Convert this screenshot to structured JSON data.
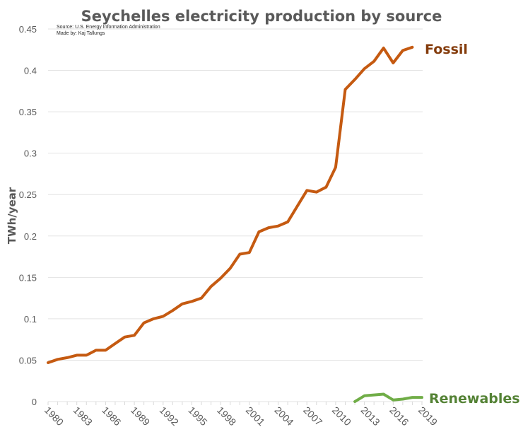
{
  "chart_data": {
    "type": "line",
    "title": "Seychelles electricity production by source",
    "source_note": "Source: U.S. Energy Information Administration",
    "author_note": "Made by: Kaj Tallungs",
    "xlabel": "",
    "ylabel": "TWh/year",
    "ylim": [
      0,
      0.45
    ],
    "yticks": [
      "0",
      "0.05",
      "0.1",
      "0.15",
      "0.2",
      "0.25",
      "0.3",
      "0.35",
      "0.4",
      "0.45"
    ],
    "ytick_values": [
      0,
      0.05,
      0.1,
      0.15,
      0.2,
      0.25,
      0.3,
      0.35,
      0.4,
      0.45
    ],
    "xlim": [
      1980,
      2019
    ],
    "xticks": [
      "1980",
      "1983",
      "1986",
      "1989",
      "1992",
      "1995",
      "1998",
      "2001",
      "2004",
      "2007",
      "2010",
      "2013",
      "2016",
      "2019"
    ],
    "grid": true,
    "legend": "direct-labels-right",
    "series": [
      {
        "name": "Fossil",
        "color": "#c55a11",
        "label_color": "#843c0c",
        "x": [
          1980,
          1981,
          1982,
          1983,
          1984,
          1985,
          1986,
          1987,
          1988,
          1989,
          1990,
          1991,
          1992,
          1993,
          1994,
          1995,
          1996,
          1997,
          1998,
          1999,
          2000,
          2001,
          2002,
          2003,
          2004,
          2005,
          2006,
          2007,
          2008,
          2009,
          2010,
          2011,
          2012,
          2013,
          2014,
          2015,
          2016,
          2017,
          2018
        ],
        "values": [
          0.047,
          0.051,
          0.053,
          0.056,
          0.056,
          0.062,
          0.062,
          0.07,
          0.078,
          0.08,
          0.095,
          0.1,
          0.103,
          0.11,
          0.118,
          0.121,
          0.125,
          0.139,
          0.149,
          0.161,
          0.178,
          0.18,
          0.205,
          0.21,
          0.212,
          0.217,
          0.236,
          0.255,
          0.253,
          0.259,
          0.283,
          0.377,
          0.389,
          0.402,
          0.411,
          0.427,
          0.409,
          0.424,
          0.428
        ]
      },
      {
        "name": "Renewables",
        "color": "#70ad47",
        "label_color": "#548235",
        "x": [
          2012,
          2013,
          2014,
          2015,
          2016,
          2017,
          2018,
          2019
        ],
        "values": [
          0.0,
          0.007,
          0.008,
          0.009,
          0.002,
          0.003,
          0.005,
          0.005
        ]
      }
    ]
  }
}
